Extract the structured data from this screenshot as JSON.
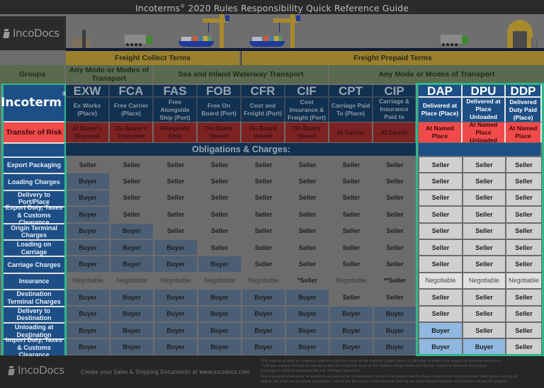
{
  "title": {
    "prefix": "Incoterms",
    "reg": "®",
    "suffix": " 2020 Rules Responsibility Quick Reference Guide"
  },
  "logo": {
    "text": "IncoDocs"
  },
  "bands": {
    "groups_blank": "",
    "collect": "Freight Collect Terms",
    "prepaid": "Freight Prepaid Terms"
  },
  "modes": {
    "groups": "Groups",
    "any1": "Any Mode or Modes of Transport",
    "sea": "Sea and Inland Waterway Transport",
    "any2": "Any Mode or Modes of Transport"
  },
  "incoterm_label": {
    "text": "Incoterm",
    "reg": "®"
  },
  "risk_label": "Transfer of Risk",
  "obligations_title": "Obligations & Charges:",
  "terms": [
    {
      "code": "EXW",
      "name": "Ex Works (Place)",
      "risk": "At Buyer's Disposal"
    },
    {
      "code": "FCA",
      "name": "Free Carrier (Place)",
      "risk": "On Buyer's Transport"
    },
    {
      "code": "FAS",
      "name": "Free Alongside Ship (Port)",
      "risk": "Alongside Ship"
    },
    {
      "code": "FOB",
      "name": "Free On Board (Port)",
      "risk": "On Board Vessel"
    },
    {
      "code": "CFR",
      "name": "Cost and Freight (Port)",
      "risk": "On Board Vessel"
    },
    {
      "code": "CIF",
      "name": "Cost Insurance & Freight (Port)",
      "risk": "On Board Vessel"
    },
    {
      "code": "CPT",
      "name": "Carriage Paid To (Place)",
      "risk": "At Carrier"
    },
    {
      "code": "CIP",
      "name": "Carriage & Insurance Paid to (Place)",
      "risk": "At Carrier"
    },
    {
      "code": "DAP",
      "name": "Delivered at Place (Place)",
      "risk": "At Named Place"
    },
    {
      "code": "DPU",
      "name": "Delivered at Place Unloaded (Place)",
      "risk": "At Named Place Unloaded"
    },
    {
      "code": "DDP",
      "name": "Delivered Duty Paid (Place)",
      "risk": "At Named Place"
    }
  ],
  "obligations": [
    {
      "label": "Export Packaging",
      "values": [
        "Seller",
        "Seller",
        "Seller",
        "Seller",
        "Seller",
        "Seller",
        "Seller",
        "Seller",
        "Seller",
        "Seller",
        "Seller"
      ]
    },
    {
      "label": "Loading Charges",
      "values": [
        "Buyer",
        "Seller",
        "Seller",
        "Seller",
        "Seller",
        "Seller",
        "Seller",
        "Seller",
        "Seller",
        "Seller",
        "Seller"
      ]
    },
    {
      "label": "Delivery to Port/Place",
      "values": [
        "Buyer",
        "Seller",
        "Seller",
        "Seller",
        "Seller",
        "Seller",
        "Seller",
        "Seller",
        "Seller",
        "Seller",
        "Seller"
      ]
    },
    {
      "label": "Export Duty, Taxes & Customs Clearance",
      "values": [
        "Buyer",
        "Seller",
        "Seller",
        "Seller",
        "Seller",
        "Seller",
        "Seller",
        "Seller",
        "Seller",
        "Seller",
        "Seller"
      ]
    },
    {
      "label": "Origin Terminal Charges",
      "values": [
        "Buyer",
        "Buyer",
        "Seller",
        "Seller",
        "Seller",
        "Seller",
        "Seller",
        "Seller",
        "Seller",
        "Seller",
        "Seller"
      ]
    },
    {
      "label": "Loading on Carriage",
      "values": [
        "Buyer",
        "Buyer",
        "Buyer",
        "Seller",
        "Seller",
        "Seller",
        "Seller",
        "Seller",
        "Seller",
        "Seller",
        "Seller"
      ]
    },
    {
      "label": "Carriage Charges",
      "values": [
        "Buyer",
        "Buyer",
        "Buyer",
        "Buyer",
        "Seller",
        "Seller",
        "Seller",
        "Seller",
        "Seller",
        "Seller",
        "Seller"
      ]
    },
    {
      "label": "Insurance",
      "values": [
        "Negotiable",
        "Negotiable",
        "Negotiable",
        "Negotiable",
        "Negotiable",
        "*Seller",
        "Negotiable",
        "**Seller",
        "Negotiable",
        "Negotiable",
        "Negotiable"
      ]
    },
    {
      "label": "Destination Terminal Charges",
      "values": [
        "Buyer",
        "Buyer",
        "Buyer",
        "Buyer",
        "Buyer",
        "Buyer",
        "Seller",
        "Seller",
        "Seller",
        "Seller",
        "Seller"
      ]
    },
    {
      "label": "Delivery to Destination",
      "values": [
        "Buyer",
        "Buyer",
        "Buyer",
        "Buyer",
        "Buyer",
        "Buyer",
        "Buyer",
        "Buyer",
        "Seller",
        "Seller",
        "Seller"
      ]
    },
    {
      "label": "Unloading at Destination",
      "values": [
        "Buyer",
        "Buyer",
        "Buyer",
        "Buyer",
        "Buyer",
        "Buyer",
        "Buyer",
        "Buyer",
        "Buyer",
        "Seller",
        "Seller"
      ]
    },
    {
      "label": "Import Duty, Taxes & Customs Clearance",
      "values": [
        "Buyer",
        "Buyer",
        "Buyer",
        "Buyer",
        "Buyer",
        "Buyer",
        "Buyer",
        "Buyer",
        "Buyer",
        "Buyer",
        "Seller"
      ]
    }
  ],
  "footer": {
    "logo": "IncoDocs",
    "tagline": "Create your Sales & Shipping Documents at www.incodocs.com",
    "notes": [
      "*CIF requires at least an insurance with the minimum cover of the Institute Cargo Clause (C) (Number of listed risks, subject to itemized exclusions)",
      "**CIP now requires at least an insurance with the minimum cover of the Institute Cargo Clause (A) (All risk, subject to itemized exclusions)",
      "Copyright © 2020 IncoSolutions Pty Ltd. All Rights Reserved.",
      "This is general information for guidance purposes only. IncoSolutions Pty Ltd is not responsible for these contents nor do the contents listed above contain all",
      "details. For a full and complete description, refer to the full version of Incoterms® 2020 by the International Chamber of Commerce at the ICC website."
    ]
  },
  "colors": {
    "accent_green": "#2fb88a",
    "freight_gold": "#9a802e",
    "header_navy": "#12304f",
    "group_blue": "#1d4f86",
    "risk_red": "#f04a4a",
    "buyer_highlight": "#90b8e0"
  }
}
